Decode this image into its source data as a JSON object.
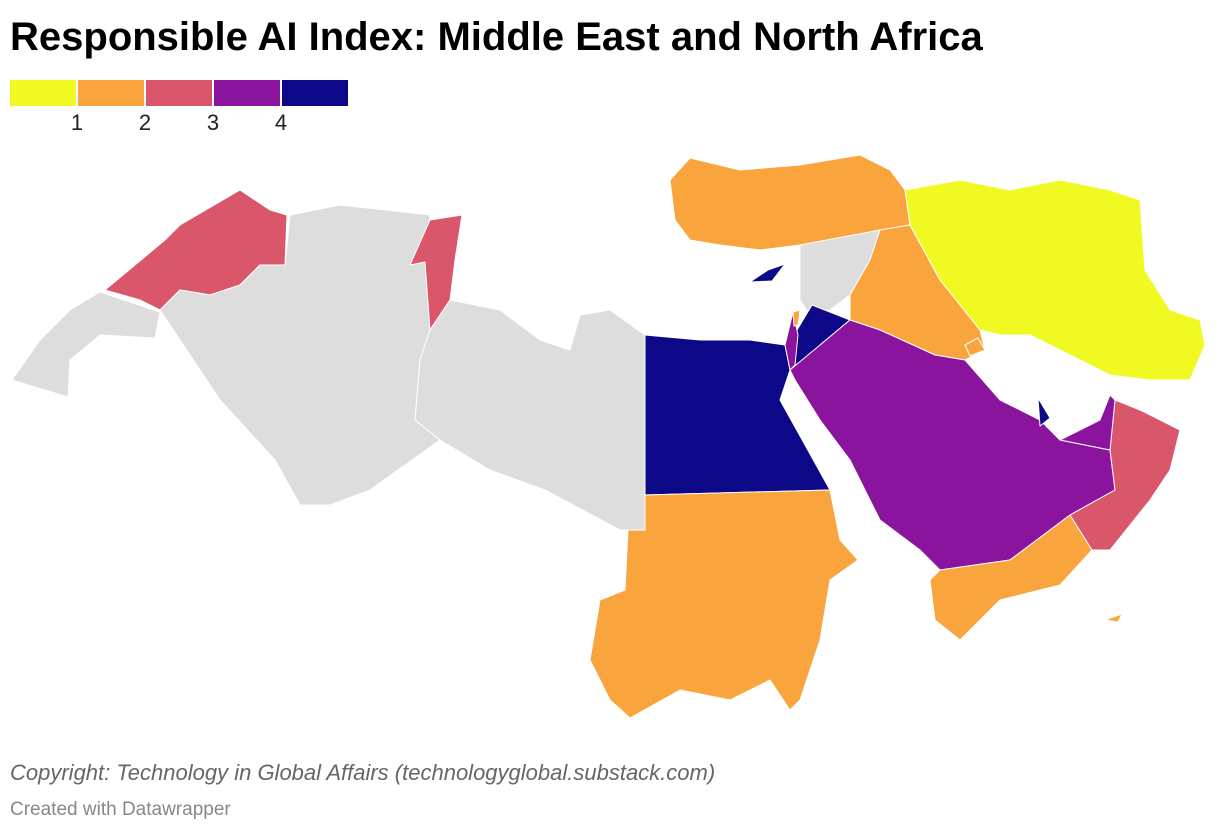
{
  "title": "Responsible AI Index: Middle East and North Africa",
  "legend": {
    "colors": [
      "#f0f921",
      "#f9a43d",
      "#d9566b",
      "#8b149e",
      "#0d0887"
    ],
    "ticks": [
      1,
      2,
      3,
      4
    ]
  },
  "footer": {
    "source": "Copyright: Technology in Global Affairs (technologyglobal.substack.com)",
    "credit": "Created with Datawrapper"
  }
}
